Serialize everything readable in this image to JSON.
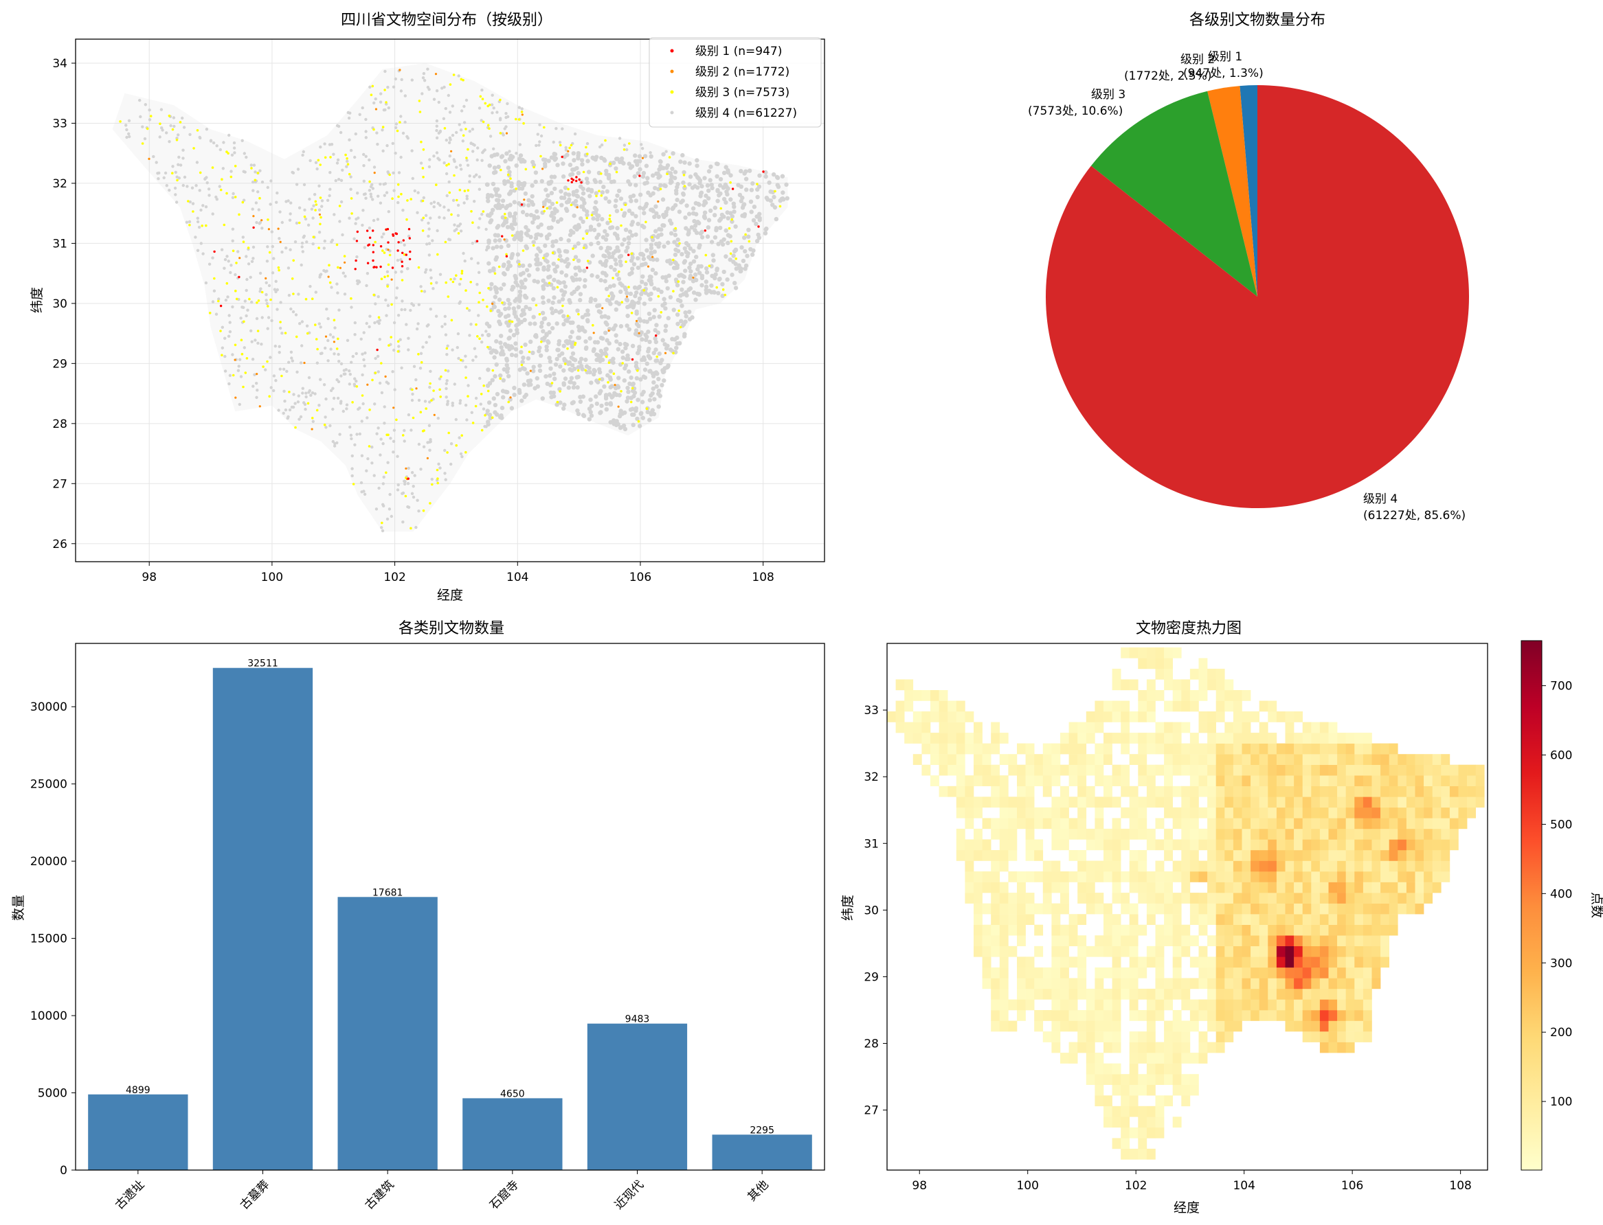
{
  "colors": {
    "level1": "#ff0000",
    "level2": "#ff8c00",
    "level3": "#ffff00",
    "level4": "#d3d3d3",
    "pie_level1": "#1f77b4",
    "pie_level2": "#ff7f0e",
    "pie_level3": "#2ca02c",
    "pie_level4": "#d62728",
    "bar": "#4682b4"
  },
  "chart_data": [
    {
      "type": "scatter",
      "title": "四川省文物空间分布（按级别）",
      "xlabel": "经度",
      "ylabel": "纬度",
      "xlim": [
        96.8,
        109.0
      ],
      "ylim": [
        25.7,
        34.4
      ],
      "xticks": [
        "98",
        "100",
        "102",
        "104",
        "106",
        "108"
      ],
      "yticks": [
        "26",
        "27",
        "28",
        "29",
        "30",
        "31",
        "32",
        "33",
        "34"
      ],
      "grid": true,
      "legend_position": "top-right",
      "series": [
        {
          "name": "级别 1 (n=947)",
          "count": 947
        },
        {
          "name": "级别 2 (n=1772)",
          "count": 1772
        },
        {
          "name": "级别 3 (n=7573)",
          "count": 7573
        },
        {
          "name": "级别 4 (n=61227)",
          "count": 61227
        }
      ]
    },
    {
      "type": "pie",
      "title": "各级别文物数量分布",
      "slices": [
        {
          "label": "级别 1",
          "detail": "(947处, 1.3%)",
          "value": 947,
          "percent": 1.3
        },
        {
          "label": "级别 2",
          "detail": "(1772处, 2.5%)",
          "value": 1772,
          "percent": 2.5
        },
        {
          "label": "级别 3",
          "detail": "(7573处, 10.6%)",
          "value": 7573,
          "percent": 10.6
        },
        {
          "label": "级别 4",
          "detail": "(61227处, 85.6%)",
          "value": 61227,
          "percent": 85.6
        }
      ]
    },
    {
      "type": "bar",
      "title": "各类别文物数量",
      "xlabel": "",
      "ylabel": "数量",
      "ylim": [
        0,
        34100
      ],
      "yticks": [
        "0",
        "5000",
        "10000",
        "15000",
        "20000",
        "25000",
        "30000"
      ],
      "categories": [
        "古遗址",
        "古墓葬",
        "古建筑",
        "石窟寺",
        "近现代",
        "其他"
      ],
      "values": [
        4899,
        32511,
        17681,
        4650,
        9483,
        2295
      ],
      "value_labels": [
        "4899",
        "32511",
        "17681",
        "4650",
        "9483",
        "2295"
      ]
    },
    {
      "type": "heatmap",
      "title": "文物密度热力图",
      "xlabel": "经度",
      "ylabel": "纬度",
      "xlim": [
        97.4,
        108.5
      ],
      "ylim": [
        26.1,
        34.0
      ],
      "xticks": [
        "98",
        "100",
        "102",
        "104",
        "106",
        "108"
      ],
      "yticks": [
        "27",
        "28",
        "29",
        "30",
        "31",
        "32",
        "33"
      ],
      "colorbar_label": "点数",
      "colorbar_range": [
        1,
        765
      ],
      "colorbar_ticks": [
        "100",
        "200",
        "300",
        "400",
        "500",
        "600",
        "700"
      ],
      "colormap": "YlOrRd"
    }
  ]
}
